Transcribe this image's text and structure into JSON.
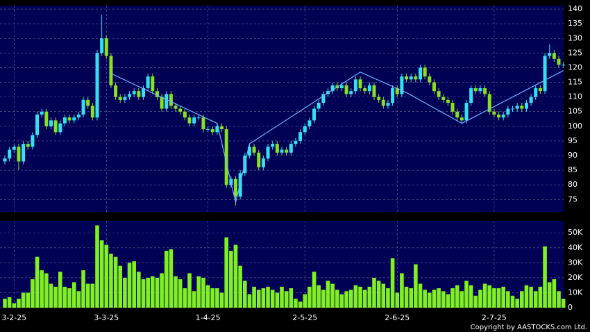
{
  "chart_data": [
    {
      "type": "candlestick",
      "up_color": "#33e0f0",
      "down_color": "#88e020",
      "background": "#000055",
      "ylim": [
        70.8,
        141.2
      ],
      "yticks": [
        75,
        80,
        85,
        90,
        95,
        100,
        105,
        110,
        115,
        120,
        125,
        130,
        135,
        140
      ],
      "xlim": [
        -1,
        122.5
      ],
      "xticks": [
        {
          "value": 2,
          "label": "3-2-25"
        },
        {
          "value": 22,
          "label": "3-3-25"
        },
        {
          "value": 44,
          "label": "1-4-25"
        },
        {
          "value": 65,
          "label": "2-5-25"
        },
        {
          "value": 85,
          "label": "2-6-25"
        },
        {
          "value": 106,
          "label": "2-7-25"
        }
      ],
      "grid": true,
      "open": [
        88,
        89,
        92,
        93,
        88,
        94,
        93,
        97,
        104,
        105,
        100,
        102,
        98,
        101,
        103,
        102,
        103,
        104,
        109,
        107,
        103,
        125,
        130,
        124,
        114,
        110,
        109,
        110,
        111,
        112,
        110,
        113,
        117,
        112,
        110,
        106,
        111,
        107,
        106,
        105,
        103,
        101,
        103,
        103,
        99,
        99,
        98,
        100,
        99,
        80,
        82,
        76,
        84,
        90,
        93,
        91,
        86,
        89,
        93,
        94,
        91,
        92,
        91,
        94,
        95,
        98,
        100,
        102,
        106,
        108,
        111,
        112,
        114,
        113,
        114,
        111,
        112,
        116,
        113,
        112,
        114,
        110,
        109,
        107,
        108,
        113,
        111,
        117,
        116,
        117,
        116,
        120,
        117,
        115,
        112,
        110,
        109,
        108,
        105,
        103,
        102,
        108,
        113,
        112,
        113,
        111,
        105,
        104,
        103,
        104,
        106,
        106,
        107,
        106,
        108,
        110,
        113,
        112,
        124,
        125,
        123,
        121
      ],
      "high": [
        90,
        93,
        94,
        94,
        95,
        95,
        98,
        105,
        106,
        106,
        103,
        103,
        102,
        104,
        104,
        104,
        105,
        110,
        110,
        108,
        126,
        138,
        131,
        125,
        115,
        111,
        111,
        112,
        113,
        113,
        114,
        118,
        118,
        113,
        111,
        112,
        112,
        108,
        107,
        106,
        104,
        104,
        104,
        104,
        100,
        100,
        101,
        101,
        100,
        83,
        83,
        85,
        91,
        94,
        94,
        92,
        90,
        94,
        95,
        95,
        93,
        93,
        95,
        96,
        99,
        101,
        103,
        107,
        109,
        112,
        113,
        115,
        115,
        115,
        115,
        113,
        117,
        117,
        114,
        115,
        115,
        111,
        110,
        109,
        114,
        114,
        118,
        118,
        118,
        118,
        121,
        121,
        118,
        116,
        113,
        111,
        110,
        109,
        106,
        104,
        109,
        114,
        114,
        114,
        114,
        112,
        106,
        105,
        105,
        107,
        107,
        108,
        108,
        109,
        111,
        114,
        114,
        125,
        128,
        126,
        124,
        122
      ],
      "low": [
        87,
        88,
        91,
        85,
        87,
        92,
        92,
        96,
        103,
        99,
        99,
        97,
        97,
        100,
        101,
        101,
        102,
        103,
        106,
        102,
        102,
        124,
        123,
        113,
        109,
        108,
        108,
        109,
        110,
        109,
        109,
        112,
        111,
        109,
        105,
        105,
        106,
        105,
        104,
        102,
        100,
        100,
        102,
        98,
        98,
        97,
        97,
        98,
        79,
        79,
        73,
        75,
        83,
        89,
        90,
        85,
        85,
        88,
        92,
        90,
        90,
        90,
        90,
        93,
        94,
        97,
        99,
        101,
        105,
        107,
        110,
        111,
        112,
        112,
        110,
        110,
        111,
        112,
        111,
        111,
        109,
        108,
        106,
        106,
        107,
        110,
        110,
        115,
        115,
        115,
        115,
        116,
        114,
        111,
        109,
        108,
        107,
        104,
        102,
        101,
        101,
        107,
        111,
        111,
        110,
        104,
        103,
        102,
        102,
        103,
        105,
        105,
        105,
        105,
        107,
        109,
        111,
        111,
        123,
        122,
        120,
        120
      ],
      "close": [
        89,
        92,
        93,
        88,
        94,
        93,
        97,
        104,
        105,
        100,
        102,
        98,
        101,
        103,
        102,
        103,
        104,
        109,
        107,
        103,
        125,
        130,
        124,
        114,
        110,
        109,
        110,
        111,
        112,
        110,
        113,
        117,
        112,
        110,
        106,
        111,
        107,
        106,
        105,
        103,
        101,
        103,
        103,
        99,
        99,
        98,
        100,
        99,
        80,
        82,
        76,
        84,
        90,
        93,
        91,
        86,
        89,
        93,
        94,
        91,
        92,
        91,
        94,
        95,
        98,
        100,
        102,
        106,
        108,
        111,
        112,
        114,
        113,
        114,
        111,
        112,
        116,
        113,
        112,
        114,
        110,
        109,
        107,
        108,
        113,
        111,
        117,
        116,
        117,
        116,
        120,
        117,
        115,
        112,
        110,
        109,
        108,
        105,
        103,
        102,
        108,
        113,
        112,
        113,
        111,
        105,
        104,
        103,
        104,
        106,
        106,
        107,
        106,
        108,
        110,
        113,
        112,
        124,
        125,
        123,
        121,
        121
      ],
      "trend_line": {
        "color": "#6fb4ff",
        "x": [
          23,
          46,
          50,
          53,
          77,
          87,
          99,
          121
        ],
        "values": [
          118,
          101,
          74,
          94,
          118.5,
          111.5,
          101,
          119
        ]
      }
    },
    {
      "type": "bar",
      "color": "#80f020",
      "background": "#000055",
      "ylim": [
        0,
        58000
      ],
      "yticks": [
        0,
        {
          "value": 10000,
          "label": "10K"
        },
        {
          "value": 20000,
          "label": "20K"
        },
        {
          "value": 30000,
          "label": "30K"
        },
        {
          "value": 40000,
          "label": "40K"
        },
        {
          "value": 50000,
          "label": "50K"
        }
      ],
      "values": [
        6000,
        7000,
        3000,
        6000,
        10000,
        10000,
        19000,
        34000,
        25000,
        23000,
        16000,
        14000,
        24000,
        14000,
        13000,
        17000,
        11000,
        25000,
        16000,
        16000,
        55000,
        45000,
        42000,
        36000,
        34000,
        28000,
        20000,
        30000,
        31000,
        24000,
        19000,
        20000,
        21000,
        20000,
        23000,
        38000,
        39000,
        21000,
        19000,
        13000,
        23000,
        11000,
        21000,
        20000,
        15000,
        13000,
        13000,
        10000,
        47000,
        38000,
        42000,
        28000,
        18000,
        9000,
        14000,
        12000,
        13000,
        14000,
        12000,
        10000,
        14000,
        11000,
        13000,
        6000,
        4000,
        9000,
        14000,
        24000,
        15000,
        12000,
        18000,
        16000,
        12000,
        9000,
        11000,
        12000,
        15000,
        14000,
        12000,
        14000,
        20000,
        18000,
        16000,
        13000,
        33000,
        10000,
        23000,
        14000,
        13000,
        29000,
        16000,
        12000,
        10000,
        12000,
        13000,
        11000,
        9000,
        13000,
        15000,
        11000,
        18000,
        15000,
        8000,
        12000,
        16000,
        15000,
        13000,
        13000,
        14000,
        11000,
        8000,
        6000,
        11000,
        15000,
        14000,
        11000,
        14000,
        41000,
        17000,
        19000,
        11000,
        6000
      ]
    }
  ],
  "footer": "Copyright by AASTOCKS.com Ltd."
}
